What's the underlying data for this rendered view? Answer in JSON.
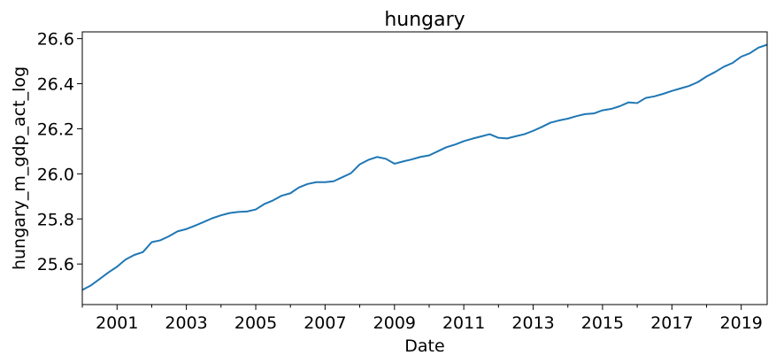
{
  "chart_data": {
    "type": "line",
    "title": "hungary",
    "xlabel": "Date",
    "ylabel": "hungary_m_gdp_act_log",
    "x_major_ticks": [
      "2001",
      "2003",
      "2005",
      "2007",
      "2009",
      "2011",
      "2013",
      "2015",
      "2017",
      "2019"
    ],
    "y_ticks": [
      "25.6",
      "25.8",
      "26.0",
      "26.2",
      "26.4",
      "26.6"
    ],
    "xlim": [
      "2000-01-01",
      "2019-10-01"
    ],
    "ylim": [
      25.42,
      26.63
    ],
    "grid": false,
    "legend": "none",
    "colors": {
      "line": "#1f77b4"
    },
    "series": [
      {
        "x": [
          "2000-01-01",
          "2000-04-01",
          "2000-07-01",
          "2000-10-01",
          "2001-01-01",
          "2001-04-01",
          "2001-07-01",
          "2001-10-01",
          "2002-01-01",
          "2002-04-01",
          "2002-07-01",
          "2002-10-01",
          "2003-01-01",
          "2003-04-01",
          "2003-07-01",
          "2003-10-01",
          "2004-01-01",
          "2004-04-01",
          "2004-07-01",
          "2004-10-01",
          "2005-01-01",
          "2005-04-01",
          "2005-07-01",
          "2005-10-01",
          "2006-01-01",
          "2006-04-01",
          "2006-07-01",
          "2006-10-01",
          "2007-01-01",
          "2007-04-01",
          "2007-07-01",
          "2007-10-01",
          "2008-01-01",
          "2008-04-01",
          "2008-07-01",
          "2008-10-01",
          "2009-01-01",
          "2009-04-01",
          "2009-07-01",
          "2009-10-01",
          "2010-01-01",
          "2010-04-01",
          "2010-07-01",
          "2010-10-01",
          "2011-01-01",
          "2011-04-01",
          "2011-07-01",
          "2011-10-01",
          "2012-01-01",
          "2012-04-01",
          "2012-07-01",
          "2012-10-01",
          "2013-01-01",
          "2013-04-01",
          "2013-07-01",
          "2013-10-01",
          "2014-01-01",
          "2014-04-01",
          "2014-07-01",
          "2014-10-01",
          "2015-01-01",
          "2015-04-01",
          "2015-07-01",
          "2015-10-01",
          "2016-01-01",
          "2016-04-01",
          "2016-07-01",
          "2016-10-01",
          "2017-01-01",
          "2017-04-01",
          "2017-07-01",
          "2017-10-01",
          "2018-01-01",
          "2018-04-01",
          "2018-07-01",
          "2018-10-01",
          "2019-01-01",
          "2019-04-01",
          "2019-07-01",
          "2019-10-01"
        ],
        "values": [
          25.485,
          25.505,
          25.533,
          25.562,
          25.588,
          25.62,
          25.64,
          25.653,
          25.697,
          25.705,
          25.723,
          25.745,
          25.755,
          25.77,
          25.786,
          25.803,
          25.816,
          25.826,
          25.831,
          25.833,
          25.842,
          25.866,
          25.882,
          25.903,
          25.914,
          25.94,
          25.955,
          25.963,
          25.963,
          25.967,
          25.985,
          26.003,
          26.042,
          26.062,
          26.075,
          26.067,
          26.045,
          26.055,
          26.064,
          26.075,
          26.082,
          26.1,
          26.118,
          26.13,
          26.145,
          26.156,
          26.166,
          26.176,
          26.16,
          26.157,
          26.167,
          26.176,
          26.191,
          26.208,
          26.227,
          26.237,
          26.245,
          26.256,
          26.265,
          26.268,
          26.282,
          26.288,
          26.3,
          26.317,
          26.314,
          26.337,
          26.344,
          26.355,
          26.368,
          26.379,
          26.39,
          26.407,
          26.432,
          26.452,
          26.475,
          26.492,
          26.52,
          26.535,
          26.56,
          26.573
        ]
      }
    ]
  }
}
